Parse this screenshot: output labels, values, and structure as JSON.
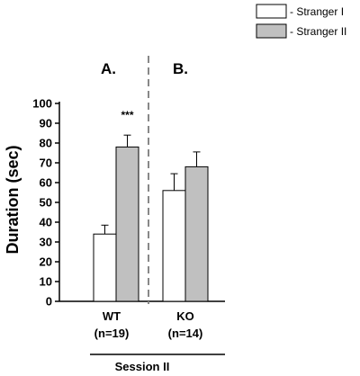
{
  "chart_data": {
    "type": "bar",
    "ylabel": "Duration (sec)",
    "ylim": [
      0,
      100
    ],
    "yticks": [
      0,
      10,
      20,
      30,
      40,
      50,
      60,
      70,
      80,
      90,
      100
    ],
    "panels": [
      {
        "label": "A.",
        "group": "WT",
        "n": "(n=19)"
      },
      {
        "label": "B.",
        "group": "KO",
        "n": "(n=14)"
      }
    ],
    "categories": [
      "WT",
      "KO"
    ],
    "series": [
      {
        "name": "- Stranger I",
        "color": "#ffffff",
        "values": [
          34,
          56
        ],
        "errors": [
          4.5,
          8.5
        ]
      },
      {
        "name": "- Stranger II",
        "color": "#c0c0c0",
        "values": [
          78,
          68
        ],
        "errors": [
          6,
          7.5
        ]
      }
    ],
    "annotations": [
      {
        "text": "***",
        "category": "WT",
        "series": "- Stranger II"
      }
    ],
    "footer": "Session II",
    "grid": false,
    "legend": "top-right"
  }
}
